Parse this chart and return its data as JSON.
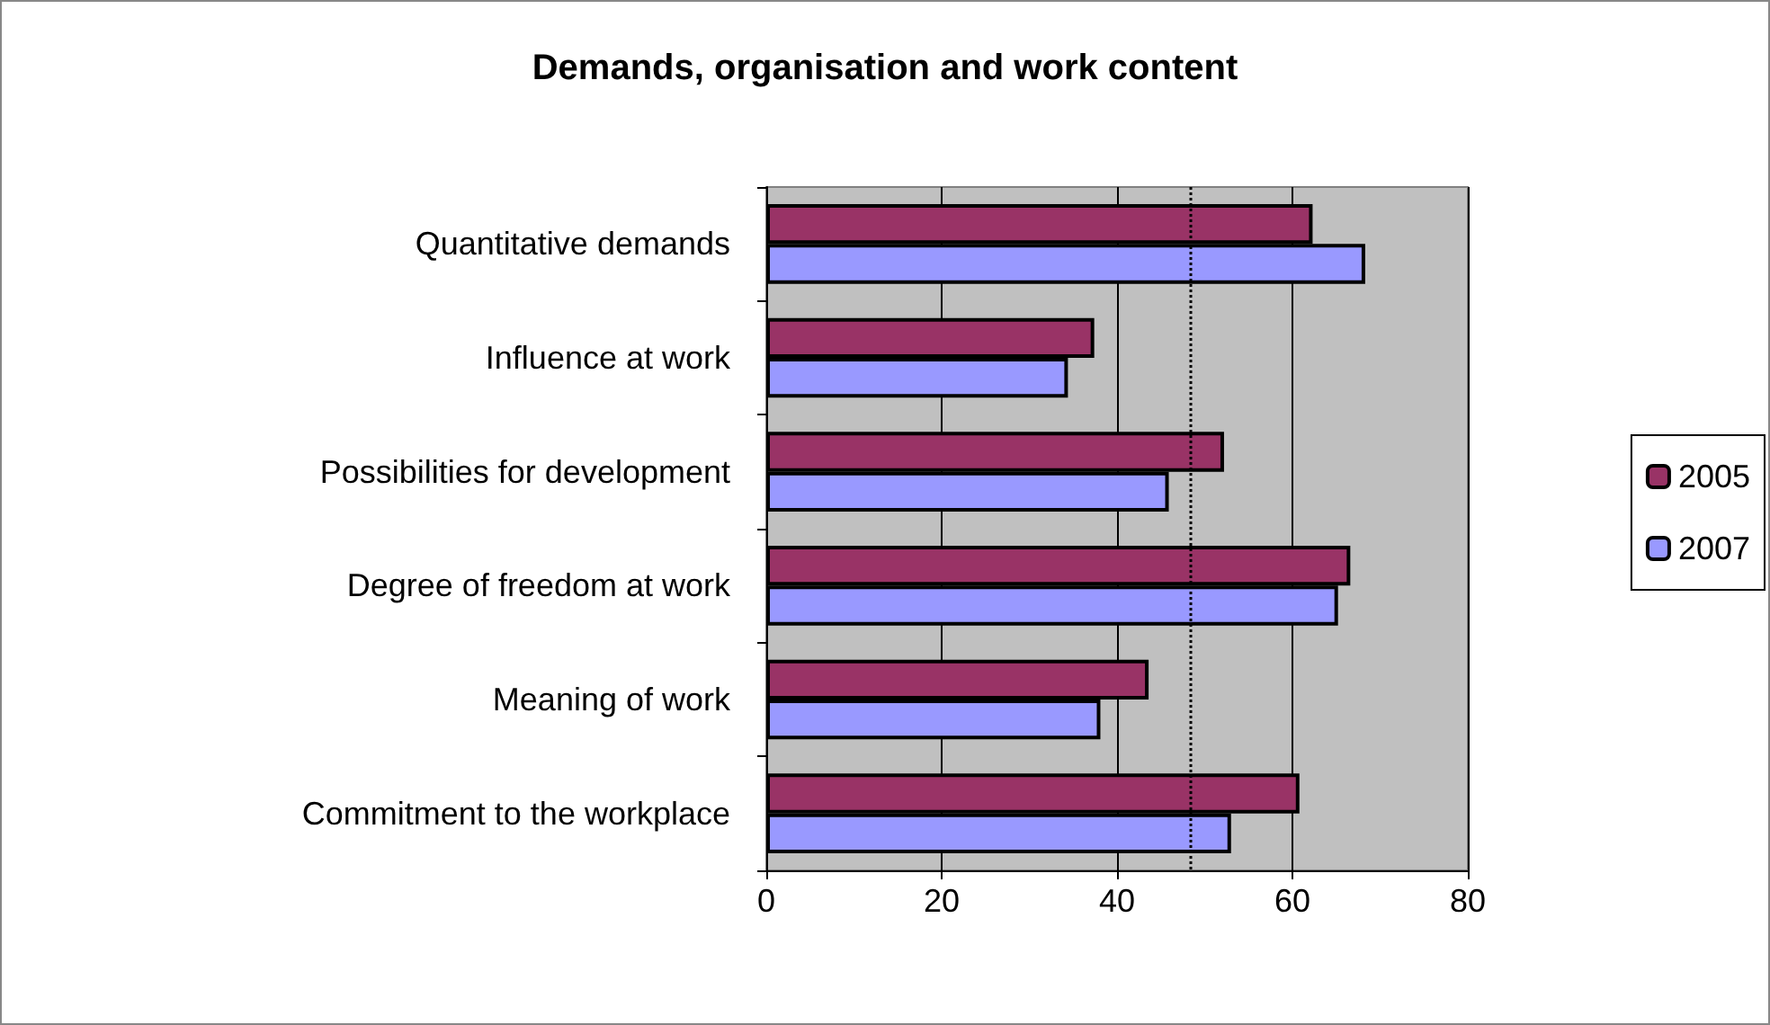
{
  "chart_data": {
    "type": "bar",
    "orientation": "horizontal",
    "title": "Demands, organisation and work content",
    "categories": [
      "Quantitative demands",
      "Influence at work",
      "Possibilities for development",
      "Degree of freedom at work",
      "Meaning of work",
      "Commitment to the workplace"
    ],
    "series": [
      {
        "name": "2005",
        "color": "#993366",
        "values": [
          62.3,
          37.4,
          52.2,
          66.6,
          43.6,
          60.8
        ]
      },
      {
        "name": "2007",
        "color": "#9999ff",
        "values": [
          68.3,
          34.4,
          45.9,
          65.2,
          38.1,
          53.0
        ]
      }
    ],
    "xlim": [
      0,
      80
    ],
    "xticks": [
      0,
      20,
      40,
      60,
      80
    ],
    "grid": "x",
    "legend": "right",
    "ref_lines": [
      {
        "axis": "x",
        "value": 48.4,
        "color": "#000000",
        "line_style": "dotted"
      }
    ]
  }
}
